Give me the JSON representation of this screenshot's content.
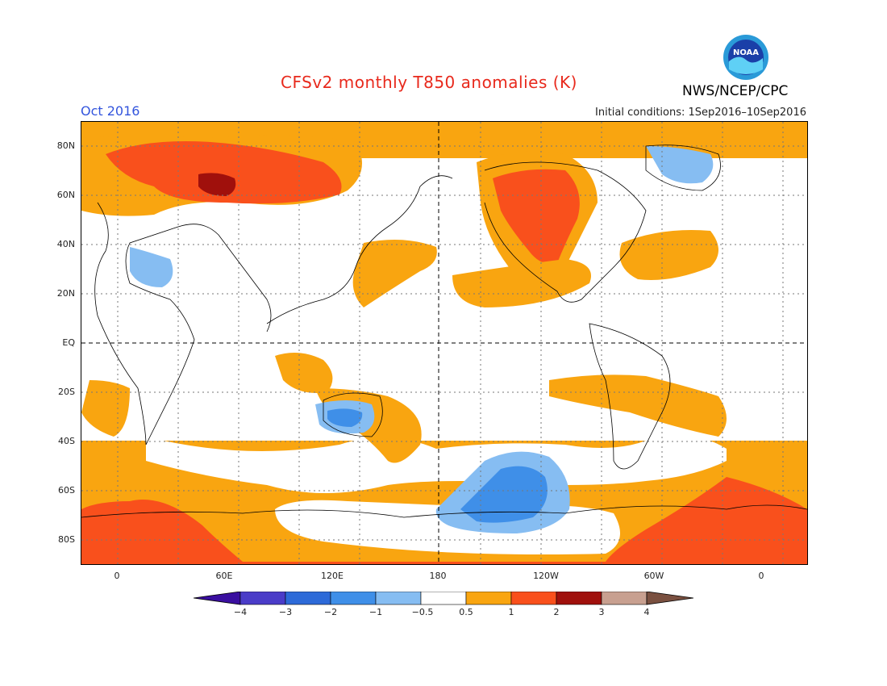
{
  "header": {
    "title": "CFSv2 monthly T850 anomalies (K)",
    "month": "Oct 2016",
    "initial_conditions": "Initial conditions: 1Sep2016–10Sep2016",
    "credit": "NWS/NCEP/CPC",
    "logo_text": "NOAA"
  },
  "map": {
    "lat_labels": [
      "80N",
      "60N",
      "40N",
      "20N",
      "EQ",
      "20S",
      "40S",
      "60S",
      "80S"
    ],
    "lon_labels": [
      "0",
      "60E",
      "120E",
      "180",
      "120W",
      "60W",
      "0"
    ],
    "colors": {
      "neg4": "#3a0fa0",
      "neg3": "#4a3cc8",
      "neg2": "#2d6ad8",
      "neg1": "#3f8fe8",
      "neg05": "#86bdf2",
      "zero": "#ffffff",
      "pos05": "#f9a510",
      "pos1": "#f9501c",
      "pos2": "#e03010",
      "pos3": "#a0100c",
      "pos4": "#c8a090",
      "pos_end": "#7a5040"
    }
  },
  "colorbar": {
    "labels": [
      "−4",
      "−3",
      "−2",
      "−1",
      "−0.5",
      "0.5",
      "1",
      "2",
      "3",
      "4"
    ],
    "colors": [
      "#4a3cc8",
      "#2d6ad8",
      "#3f8fe8",
      "#86bdf2",
      "#ffffff",
      "#f9a510",
      "#f9501c",
      "#a0100c",
      "#c8a090"
    ]
  }
}
